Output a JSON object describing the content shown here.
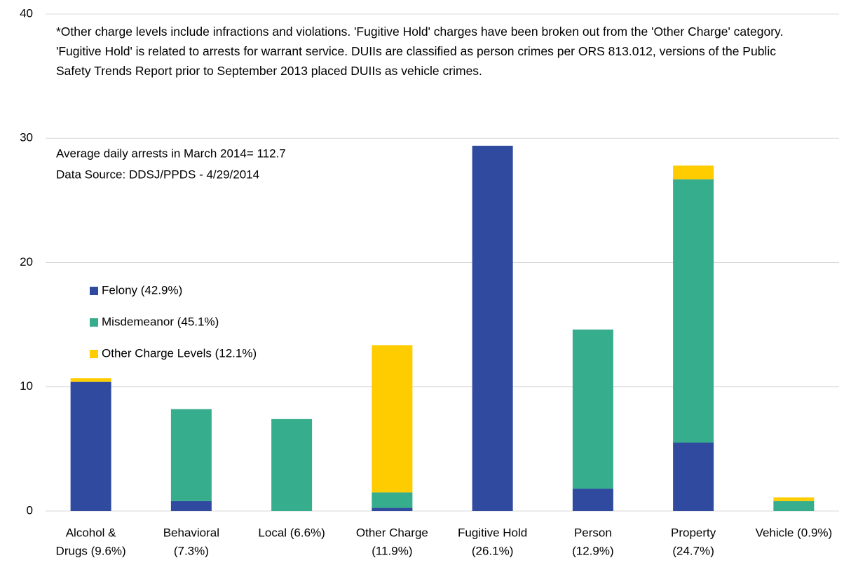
{
  "chart_data": {
    "type": "stacked_bar",
    "note": "*Other charge levels include infractions and violations. 'Fugitive Hold' charges have been broken out from the 'Other Charge' category. 'Fugitive Hold' is related to arrests for warrant service. DUIIs are classified as person crimes per ORS 813.012,  versions of the Public Safety Trends Report prior to September 2013 placed DUIIs as vehicle crimes.",
    "annotations": [
      "Average daily arrests in March 2014= 112.7",
      "Data Source: DDSJ/PPDS - 4/29/2014"
    ],
    "categories": [
      [
        "Alcohol &",
        "Drugs (9.6%)"
      ],
      [
        "Behavioral",
        "(7.3%)"
      ],
      [
        "Local (6.6%)"
      ],
      [
        "Other Charge",
        "(11.9%)"
      ],
      [
        "Fugitive Hold",
        "(26.1%)"
      ],
      [
        "Person",
        "(12.9%)"
      ],
      [
        "Property",
        "(24.7%)"
      ],
      [
        "Vehicle (0.9%)"
      ]
    ],
    "series": [
      {
        "name": "Felony (42.9%)",
        "color": "#2f4a9e",
        "values": [
          10.4,
          0.8,
          0,
          0.25,
          29.4,
          1.8,
          5.5,
          0
        ]
      },
      {
        "name": "Misdemeanor (45.1%)",
        "color": "#36ad8c",
        "values": [
          0,
          7.4,
          7.4,
          1.25,
          0,
          12.8,
          21.2,
          0.8
        ]
      },
      {
        "name": "Other Charge Levels (12.1%)",
        "color": "#ffcc00",
        "values": [
          0.3,
          0,
          0,
          11.85,
          0,
          0,
          1.1,
          0.3
        ]
      }
    ],
    "ylim": [
      0,
      40
    ],
    "yticks": [
      0,
      10,
      20,
      30,
      40
    ],
    "grid": true
  }
}
